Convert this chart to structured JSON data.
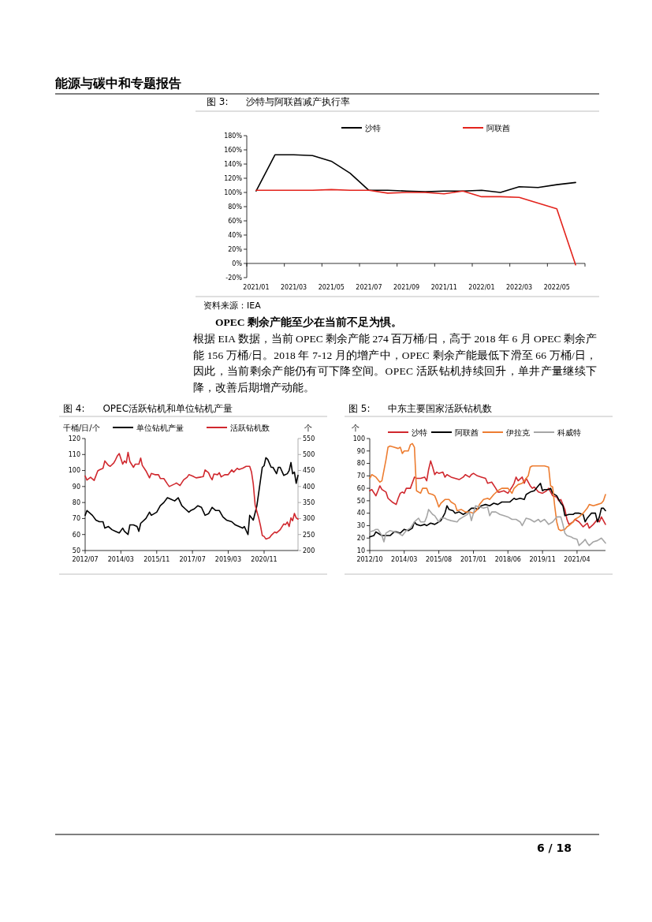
{
  "chart_data": [
    {
      "type": "other",
      "title": "能源与碳中和专题报告"
    },
    {
      "type": "line",
      "title": "图 3:      沙特与阿联酋减产执行率",
      "categories": [
        "2021/01",
        null,
        "2021/03",
        null,
        "2021/05",
        null,
        "2021/07",
        null,
        "2021/09",
        null,
        "2021/11",
        null,
        "2022/01",
        null,
        "2022/03",
        null,
        "2022/05",
        null
      ],
      "series": [
        {
          "name": "沙特",
          "color": "#000000",
          "values": [
            102,
            153,
            153,
            152,
            144,
            127,
            103,
            103,
            102,
            101,
            102,
            102,
            103,
            100,
            108,
            107,
            111,
            114
          ]
        },
        {
          "name": "阿联酋",
          "color": "#e3231c",
          "values": [
            103,
            103,
            103,
            103,
            104,
            103,
            103,
            99,
            100,
            100,
            98,
            102,
            94,
            94,
            93,
            85,
            77,
            -2
          ]
        }
      ],
      "ylim": [
        -20,
        180
      ],
      "yticks": [
        {
          "value": -20,
          "label": "-20%"
        },
        {
          "value": 0,
          "label": "0%"
        },
        {
          "value": 20,
          "label": "20%"
        },
        {
          "value": 40,
          "label": "40%"
        },
        {
          "value": 60,
          "label": "60%"
        },
        {
          "value": 80,
          "label": "80%"
        },
        {
          "value": 100,
          "label": "100%"
        },
        {
          "value": 120,
          "label": "120%"
        },
        {
          "value": 140,
          "label": "140%"
        },
        {
          "value": 160,
          "label": "160%"
        },
        {
          "value": 180,
          "label": "180%"
        }
      ],
      "legend": "top",
      "annotations": [
        "资料来源：IEA"
      ]
    },
    {
      "type": "other",
      "annotations": [
        "OPEC 剩余产能至少在当前不足为惧。",
        "根据 EIA 数据，当前 OPEC 剩余产能 274 百万桶/日，高于 2018 年 6 月 OPEC 剩余产能 156 万桶/日。2018 年 7-12 月的增产中，OPEC 剩余产能最低下滑至 66 万桶/日，因此，当前剩余产能仍有可下降空间。OPEC 活跃钻机持续回升，单井产量继续下降，改善后期增产动能。"
      ]
    },
    {
      "type": "line",
      "title": "图 4:      OPEC活跃钻机和单位钻机产量",
      "ylabel": "千桶/日/个",
      "y2label": "个",
      "xlim": [
        "2012-07",
        "2022-06"
      ],
      "xticks": [
        {
          "value": "2012-07",
          "label": "2012/07"
        },
        {
          "value": "2014-03",
          "label": "2014/03"
        },
        {
          "value": "2015-11",
          "label": "2015/11"
        },
        {
          "value": "2017-07",
          "label": "2017/07"
        },
        {
          "value": "2019-03",
          "label": "2019/03"
        },
        {
          "value": "2020-11",
          "label": "2020/11"
        }
      ],
      "ylim": [
        50,
        120
      ],
      "yticks": [
        50,
        60,
        70,
        80,
        90,
        100,
        110,
        120
      ],
      "y2lim": [
        200,
        550
      ],
      "y2ticks": [
        200,
        250,
        300,
        350,
        400,
        450,
        500,
        550
      ],
      "legend": "top",
      "series": [
        {
          "name": "单位钻机产量",
          "color": "#000000",
          "x": [
            "2012-07",
            "2012-08",
            "2012-09",
            "2012-11",
            "2013-01",
            "2013-03",
            "2013-05",
            "2013-06",
            "2013-08",
            "2013-10",
            "2013-12",
            "2014-02",
            "2014-04",
            "2014-05",
            "2014-07",
            "2014-08",
            "2014-10",
            "2014-12",
            "2015-01",
            "2015-02",
            "2015-05",
            "2015-07",
            "2015-08",
            "2015-11",
            "2016-01",
            "2016-03",
            "2016-05",
            "2016-07",
            "2016-09",
            "2016-11",
            "2017-01",
            "2017-03",
            "2017-05",
            "2017-06",
            "2017-08",
            "2017-10",
            "2017-12",
            "2018-02",
            "2018-04",
            "2018-06",
            "2018-08",
            "2018-10",
            "2018-12",
            "2019-02",
            "2019-05",
            "2019-07",
            "2019-09",
            "2019-11",
            "2019-12",
            "2020-02",
            "2020-03",
            "2020-05",
            "2020-07",
            "2020-08",
            "2020-10",
            "2020-11",
            "2020-12",
            "2021-01",
            "2021-03",
            "2021-04",
            "2021-06",
            "2021-07",
            "2021-08",
            "2021-10",
            "2021-12",
            "2022-01",
            "2022-02",
            "2022-03",
            "2022-04",
            "2022-05",
            "2022-06"
          ],
          "values": [
            72,
            75,
            74,
            72,
            69,
            68,
            68,
            64,
            65,
            63,
            62,
            61,
            64,
            62,
            60,
            66,
            66,
            65,
            62,
            67,
            70,
            74,
            72,
            74,
            78,
            80,
            83,
            82,
            81,
            83,
            78,
            76,
            74,
            75,
            76,
            78,
            77,
            72,
            73,
            77,
            75,
            75,
            71,
            69,
            68,
            66,
            65,
            64,
            65,
            60,
            72,
            69,
            78,
            86,
            102,
            103,
            108,
            107,
            102,
            102,
            98,
            102,
            102,
            97,
            98,
            100,
            105,
            98,
            99,
            92,
            97
          ]
        },
        {
          "name": "活跃钻机数",
          "color": "#d0282e",
          "axis": "y2",
          "x": [
            "2012-07",
            "2012-08",
            "2012-10",
            "2012-12",
            "2013-02",
            "2013-03",
            "2013-05",
            "2013-06",
            "2013-08",
            "2013-09",
            "2013-11",
            "2013-12",
            "2014-01",
            "2014-02",
            "2014-04",
            "2014-05",
            "2014-06",
            "2014-07",
            "2014-08",
            "2014-10",
            "2014-11",
            "2015-01",
            "2015-02",
            "2015-03",
            "2015-05",
            "2015-07",
            "2015-08",
            "2015-10",
            "2015-12",
            "2016-01",
            "2016-03",
            "2016-05",
            "2016-06",
            "2016-09",
            "2016-10",
            "2016-12",
            "2017-02",
            "2017-04",
            "2017-05",
            "2017-07",
            "2017-09",
            "2017-11",
            "2018-01",
            "2018-02",
            "2018-04",
            "2018-05",
            "2018-06",
            "2018-07",
            "2018-09",
            "2018-10",
            "2018-11",
            "2019-01",
            "2019-03",
            "2019-05",
            "2019-06",
            "2019-08",
            "2019-09",
            "2019-11",
            "2020-01",
            "2020-03",
            "2020-04",
            "2020-05",
            "2020-06",
            "2020-07",
            "2020-08",
            "2020-09",
            "2020-10",
            "2020-11",
            "2020-12",
            "2021-02",
            "2021-03",
            "2021-05",
            "2021-06",
            "2021-08",
            "2021-10",
            "2021-11",
            "2021-12",
            "2022-01",
            "2022-02",
            "2022-03",
            "2022-04",
            "2022-05",
            "2022-06"
          ],
          "values": [
            433,
            420,
            429,
            419,
            449,
            452,
            457,
            480,
            466,
            463,
            474,
            484,
            496,
            503,
            470,
            480,
            474,
            507,
            478,
            460,
            470,
            470,
            489,
            466,
            449,
            427,
            441,
            437,
            437,
            425,
            425,
            408,
            400,
            408,
            411,
            403,
            421,
            429,
            437,
            433,
            427,
            429,
            431,
            452,
            443,
            430,
            421,
            439,
            437,
            443,
            430,
            437,
            437,
            452,
            445,
            457,
            453,
            457,
            463,
            463,
            445,
            408,
            343,
            322,
            302,
            277,
            247,
            244,
            236,
            240,
            247,
            258,
            255,
            265,
            283,
            281,
            289,
            275,
            302,
            293,
            316,
            302,
            298
          ]
        }
      ]
    },
    {
      "type": "line",
      "title": "图 5:      中东主要国家活跃钻机数",
      "ylabel": "个",
      "xlim": [
        "2012-10",
        "2022-06"
      ],
      "xticks": [
        {
          "value": "2012-10",
          "label": "2012/10"
        },
        {
          "value": "2014-03",
          "label": "2014/03"
        },
        {
          "value": "2015-08",
          "label": "2015/08"
        },
        {
          "value": "2017-01",
          "label": "2017/01"
        },
        {
          "value": "2018-06",
          "label": "2018/06"
        },
        {
          "value": "2019-11",
          "label": "2019/11"
        },
        {
          "value": "2021-04",
          "label": "2021/04"
        }
      ],
      "ylim": [
        10,
        100
      ],
      "yticks": [
        10,
        20,
        30,
        40,
        50,
        60,
        70,
        80,
        90,
        100
      ],
      "legend": "top",
      "series": [
        {
          "name": "沙特",
          "color": "#d0282e",
          "x": [
            "2012-10",
            "2012-11",
            "2013-01",
            "2013-02",
            "2013-03",
            "2013-04",
            "2013-06",
            "2013-07",
            "2013-09",
            "2013-11",
            "2013-12",
            "2014-01",
            "2014-02",
            "2014-03",
            "2014-04",
            "2014-06",
            "2014-08",
            "2014-09",
            "2014-11",
            "2015-01",
            "2015-02",
            "2015-03",
            "2015-04",
            "2015-05",
            "2015-06",
            "2015-07",
            "2015-08",
            "2015-10",
            "2015-11",
            "2015-12",
            "2016-02",
            "2016-04",
            "2016-06",
            "2016-08",
            "2016-09",
            "2016-11",
            "2016-12",
            "2017-01",
            "2017-03",
            "2017-05",
            "2017-07",
            "2017-08",
            "2017-10",
            "2017-12",
            "2018-01",
            "2018-02",
            "2018-04",
            "2018-06",
            "2018-08",
            "2018-09",
            "2018-10",
            "2018-11",
            "2019-01",
            "2019-02",
            "2019-03",
            "2019-05",
            "2019-06",
            "2019-07",
            "2019-09",
            "2019-11",
            "2020-01",
            "2020-02",
            "2020-04",
            "2020-06",
            "2020-07",
            "2020-08",
            "2020-10",
            "2020-11",
            "2020-12",
            "2021-02",
            "2021-03",
            "2021-05",
            "2021-07",
            "2021-09",
            "2021-10",
            "2021-12",
            "2022-02",
            "2022-03",
            "2022-04",
            "2022-06"
          ],
          "values": [
            58,
            59,
            54,
            58,
            62,
            59,
            57,
            52,
            49,
            47,
            52,
            56,
            57,
            56,
            60,
            60,
            69,
            68,
            68,
            69,
            66,
            75,
            82,
            77,
            71,
            73,
            72,
            73,
            69,
            71,
            69,
            68,
            67,
            69,
            71,
            69,
            71,
            72,
            70,
            69,
            68,
            64,
            65,
            60,
            57,
            57,
            58,
            56,
            61,
            64,
            69,
            66,
            69,
            64,
            68,
            62,
            60,
            61,
            57,
            56,
            58,
            60,
            54,
            53,
            50,
            51,
            43,
            35,
            31,
            33,
            35,
            33,
            29,
            32,
            28,
            31,
            35,
            33,
            37,
            31
          ]
        },
        {
          "name": "阿联酋",
          "color": "#000000",
          "x": [
            "2012-10",
            "2012-12",
            "2013-01",
            "2013-03",
            "2013-04",
            "2013-06",
            "2013-08",
            "2013-10",
            "2013-11",
            "2014-01",
            "2014-03",
            "2014-05",
            "2014-07",
            "2014-08",
            "2014-09",
            "2014-11",
            "2015-01",
            "2015-02",
            "2015-04",
            "2015-06",
            "2015-08",
            "2015-09",
            "2015-11",
            "2015-12",
            "2016-01",
            "2016-03",
            "2016-04",
            "2016-06",
            "2016-08",
            "2016-10",
            "2016-12",
            "2017-02",
            "2017-03",
            "2017-05",
            "2017-07",
            "2017-09",
            "2017-11",
            "2018-01",
            "2018-03",
            "2018-05",
            "2018-07",
            "2018-09",
            "2018-10",
            "2018-12",
            "2019-02",
            "2019-03",
            "2019-05",
            "2019-07",
            "2019-08",
            "2019-10",
            "2019-11",
            "2019-12",
            "2020-02",
            "2020-03",
            "2020-04",
            "2020-06",
            "2020-08",
            "2020-09",
            "2020-10",
            "2020-12",
            "2021-02",
            "2021-03",
            "2021-05",
            "2021-07",
            "2021-08",
            "2021-09",
            "2021-11",
            "2022-01",
            "2022-02",
            "2022-03",
            "2022-04",
            "2022-05",
            "2022-06"
          ],
          "values": [
            21,
            22,
            25,
            23,
            22,
            22,
            22,
            25,
            25,
            24,
            27,
            26,
            28,
            33,
            31,
            30,
            31,
            30,
            32,
            31,
            33,
            34,
            40,
            46,
            43,
            42,
            40,
            41,
            39,
            41,
            44,
            44,
            43,
            46,
            47,
            46,
            48,
            47,
            49,
            49,
            49,
            52,
            51,
            52,
            51,
            55,
            57,
            58,
            60,
            64,
            58,
            59,
            59,
            60,
            56,
            54,
            48,
            46,
            38,
            39,
            39,
            40,
            40,
            39,
            33,
            36,
            40,
            40,
            33,
            37,
            44,
            44,
            42
          ]
        },
        {
          "name": "伊拉克",
          "color": "#ed7d31",
          "x": [
            "2012-10",
            "2012-11",
            "2013-01",
            "2013-03",
            "2013-04",
            "2013-06",
            "2013-07",
            "2013-08",
            "2013-10",
            "2013-12",
            "2014-01",
            "2014-02",
            "2014-03",
            "2014-05",
            "2014-06",
            "2014-07",
            "2014-08",
            "2014-09",
            "2014-11",
            "2014-12",
            "2015-02",
            "2015-03",
            "2015-05",
            "2015-06",
            "2015-07",
            "2015-08",
            "2015-09",
            "2015-11",
            "2016-01",
            "2016-02",
            "2016-04",
            "2016-05",
            "2016-07",
            "2016-09",
            "2016-11",
            "2017-01",
            "2017-03",
            "2017-04",
            "2017-06",
            "2017-08",
            "2017-09",
            "2017-11",
            "2018-01",
            "2018-03",
            "2018-04",
            "2018-06",
            "2018-08",
            "2018-09",
            "2018-11",
            "2019-01",
            "2019-03",
            "2019-04",
            "2019-05",
            "2019-06",
            "2019-09",
            "2019-12",
            "2020-02",
            "2020-03",
            "2020-04",
            "2020-05",
            "2020-06",
            "2020-07",
            "2020-08",
            "2020-10",
            "2020-11",
            "2020-12",
            "2021-02",
            "2021-03",
            "2021-05",
            "2021-07",
            "2021-09",
            "2021-10",
            "2021-12",
            "2022-02",
            "2022-04",
            "2022-05",
            "2022-06"
          ],
          "values": [
            68,
            71,
            69,
            65,
            66,
            83,
            93,
            94,
            93,
            92,
            93,
            88,
            90,
            90,
            95,
            96,
            93,
            58,
            56,
            60,
            60,
            56,
            55,
            54,
            50,
            45,
            48,
            51,
            51,
            49,
            47,
            42,
            43,
            41,
            41,
            40,
            43,
            47,
            51,
            52,
            51,
            55,
            58,
            60,
            60,
            60,
            56,
            60,
            63,
            64,
            68,
            70,
            77,
            78,
            78,
            78,
            77,
            62,
            61,
            46,
            33,
            27,
            26,
            27,
            29,
            30,
            33,
            35,
            37,
            40,
            44,
            47,
            46,
            47,
            48,
            50,
            55
          ]
        },
        {
          "name": "科威特",
          "color": "#a6a6a6",
          "x": [
            "2012-10",
            "2012-12",
            "2013-01",
            "2013-02",
            "2013-04",
            "2013-05",
            "2013-06",
            "2013-08",
            "2013-10",
            "2013-12",
            "2014-02",
            "2014-04",
            "2014-06",
            "2014-08",
            "2014-10",
            "2014-11",
            "2015-01",
            "2015-02",
            "2015-03",
            "2015-05",
            "2015-06",
            "2015-08",
            "2015-09",
            "2015-11",
            "2015-12",
            "2016-02",
            "2016-05",
            "2016-06",
            "2016-08",
            "2016-10",
            "2016-11",
            "2016-12",
            "2017-02",
            "2017-04",
            "2017-06",
            "2017-08",
            "2017-09",
            "2017-10",
            "2017-12",
            "2018-02",
            "2018-04",
            "2018-06",
            "2018-08",
            "2018-10",
            "2018-12",
            "2019-01",
            "2019-03",
            "2019-05",
            "2019-07",
            "2019-09",
            "2019-10",
            "2019-12",
            "2020-02",
            "2020-04",
            "2020-06",
            "2020-08",
            "2020-09",
            "2020-10",
            "2020-11",
            "2021-01",
            "2021-02",
            "2021-04",
            "2021-05",
            "2021-07",
            "2021-08",
            "2021-09",
            "2021-10",
            "2021-12",
            "2022-02",
            "2022-04",
            "2022-06"
          ],
          "values": [
            25,
            26,
            27,
            27,
            22,
            17,
            24,
            26,
            25,
            24,
            22,
            26,
            28,
            33,
            36,
            33,
            33,
            37,
            43,
            39,
            38,
            33,
            36,
            36,
            35,
            34,
            33,
            35,
            37,
            39,
            41,
            34,
            46,
            45,
            44,
            45,
            38,
            41,
            41,
            39,
            38,
            37,
            35,
            35,
            33,
            30,
            36,
            35,
            33,
            35,
            33,
            35,
            31,
            33,
            37,
            37,
            31,
            24,
            22,
            21,
            20,
            19,
            14,
            17,
            19,
            16,
            14,
            17,
            18,
            20,
            16
          ]
        }
      ]
    },
    {
      "type": "other",
      "annotations": [
        "6 / 18"
      ]
    }
  ]
}
